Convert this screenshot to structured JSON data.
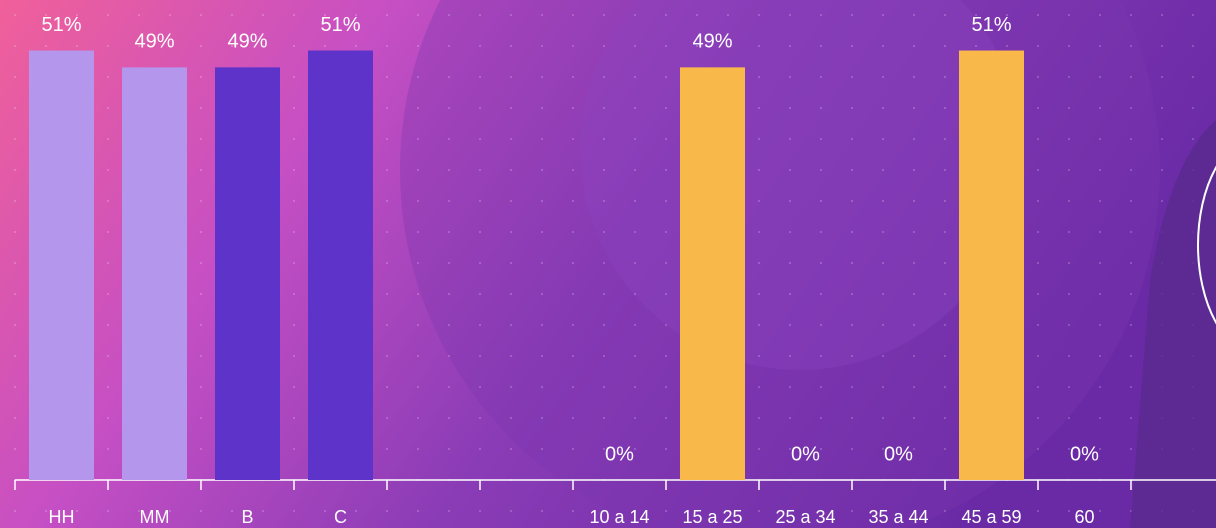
{
  "chart_data": {
    "type": "bar",
    "categories": [
      "HH",
      "MM",
      "B",
      "C",
      null,
      null,
      "10 a 14",
      "15 a 25",
      "25 a 34",
      "35 a 44",
      "45 a 59",
      "60"
    ],
    "values": [
      51,
      49,
      49,
      51,
      null,
      null,
      0,
      49,
      0,
      0,
      51,
      0
    ],
    "value_labels": [
      "51%",
      "49%",
      "49%",
      "51%",
      null,
      null,
      "0%",
      "49%",
      "0%",
      "0%",
      "51%",
      "0%"
    ],
    "colors": [
      "#b496ec",
      "#b496ec",
      "#5d33c9",
      "#5d33c9",
      null,
      null,
      "#f8b94a",
      "#f8b94a",
      "#f8b94a",
      "#f8b94a",
      "#f8b94a",
      "#f8b94a"
    ],
    "ylim": [
      0,
      57
    ]
  }
}
